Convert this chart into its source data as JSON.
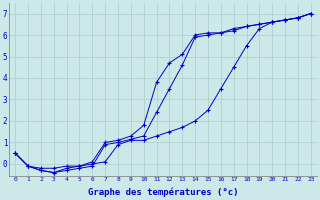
{
  "xlabel": "Graphe des températures (°c)",
  "ylabel": "",
  "bg_color": "#cce8e8",
  "grid_color": "#aacccc",
  "line_color": "#0000cc",
  "xlim": [
    -0.5,
    23.5
  ],
  "ylim": [
    -0.55,
    7.5
  ],
  "xticks": [
    0,
    1,
    2,
    3,
    4,
    5,
    6,
    7,
    8,
    9,
    10,
    11,
    12,
    13,
    14,
    15,
    16,
    17,
    18,
    19,
    20,
    21,
    22,
    23
  ],
  "yticks": [
    0,
    1,
    2,
    3,
    4,
    5,
    6,
    7
  ],
  "line1_x": [
    0,
    1,
    2,
    3,
    4,
    5,
    6,
    7,
    8,
    9,
    10,
    11,
    12,
    13,
    14,
    15,
    16,
    17,
    18,
    19,
    20,
    21,
    22,
    23
  ],
  "line1_y": [
    0.5,
    -0.1,
    -0.2,
    -0.2,
    -0.1,
    -0.1,
    0.0,
    0.1,
    0.9,
    1.1,
    1.1,
    1.3,
    1.5,
    1.7,
    2.0,
    2.5,
    3.5,
    4.5,
    5.5,
    6.3,
    6.6,
    6.7,
    6.8,
    7.0
  ],
  "line2_x": [
    0,
    1,
    2,
    3,
    4,
    5,
    6,
    7,
    8,
    9,
    10,
    11,
    12,
    13,
    14,
    15,
    16,
    17,
    18,
    19,
    20,
    21,
    22,
    23
  ],
  "line2_y": [
    0.5,
    -0.1,
    -0.3,
    -0.4,
    -0.3,
    -0.2,
    -0.1,
    0.9,
    1.0,
    1.15,
    1.3,
    2.4,
    3.5,
    4.6,
    5.9,
    6.0,
    6.1,
    6.3,
    6.4,
    6.5,
    6.6,
    6.7,
    6.8,
    7.0
  ],
  "line3_x": [
    0,
    1,
    2,
    3,
    4,
    5,
    6,
    7,
    8,
    9,
    10,
    11,
    12,
    13,
    14,
    15,
    16,
    17,
    18,
    19,
    20,
    21,
    22,
    23
  ],
  "line3_y": [
    0.5,
    -0.1,
    -0.3,
    -0.4,
    -0.2,
    -0.1,
    0.1,
    1.0,
    1.1,
    1.3,
    1.8,
    3.8,
    4.7,
    5.1,
    6.0,
    6.1,
    6.1,
    6.2,
    6.4,
    6.5,
    6.6,
    6.7,
    6.8,
    7.0
  ]
}
